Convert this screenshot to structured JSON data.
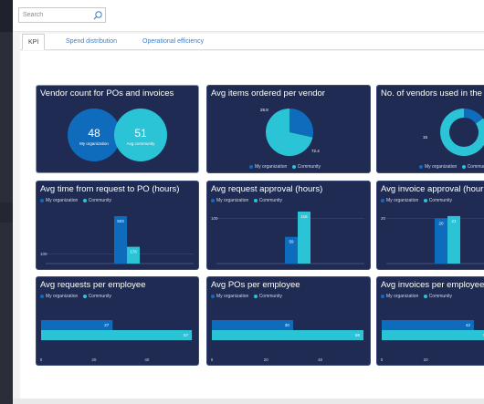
{
  "search": {
    "placeholder": "Search",
    "value": ""
  },
  "tabs": [
    {
      "label": "KPI",
      "active": true
    },
    {
      "label": "Spend distribution",
      "active": false
    },
    {
      "label": "Operational efficiency",
      "active": false
    }
  ],
  "colors": {
    "org": "#0f6cbd",
    "community": "#2bc3d6",
    "tile_bg": "#1f2b52"
  },
  "legend": {
    "org": "My organization",
    "community": "Community"
  },
  "tiles": {
    "vendor_count": {
      "title": "Vendor count for POs and invoices",
      "org_value": "48",
      "org_label": "My organization",
      "community_value": "51",
      "community_label": "Avg community"
    },
    "avg_items": {
      "title": "Avg items ordered per vendor",
      "label_a": "28.8",
      "label_b": "72.4"
    },
    "num_vendors": {
      "title": "No. of vendors used in the",
      "label_a": "15"
    },
    "time_to_po": {
      "title": "Avg time from request to PO (hours)"
    },
    "req_approval": {
      "title": "Avg request approval (hours)"
    },
    "inv_approval": {
      "title": "Avg invoice approval (hour"
    },
    "req_per_emp": {
      "title": "Avg requests per employee"
    },
    "pos_per_emp": {
      "title": "Avg POs per employee"
    },
    "inv_per_emp": {
      "title": "Avg invoices per employee"
    }
  },
  "chart_data": [
    {
      "type": "pie",
      "title": "Avg items ordered per vendor",
      "labels": [
        "My organization",
        "Community"
      ],
      "values": [
        28.8,
        72.4
      ]
    },
    {
      "type": "pie",
      "title": "No. of vendors used in the",
      "labels": [
        "My organization",
        "Community"
      ],
      "values": [
        15,
        85
      ]
    },
    {
      "type": "bar",
      "title": "Avg time from request to PO (hours)",
      "ylim": [
        0,
        600
      ],
      "ytick": "100",
      "ytick_value": 100,
      "series": [
        {
          "name": "My organization",
          "values": [
            503
          ],
          "label": "503"
        },
        {
          "name": "Community",
          "values": [
            178
          ],
          "label": "178"
        }
      ]
    },
    {
      "type": "bar",
      "title": "Avg request approval (hours)",
      "ylim": [
        0,
        125
      ],
      "ytick": "100",
      "ytick_value": 100,
      "series": [
        {
          "name": "My organization",
          "values": [
            59
          ],
          "label": "59"
        },
        {
          "name": "Community",
          "values": [
            115
          ],
          "label": "115"
        }
      ]
    },
    {
      "type": "bar",
      "title": "Avg invoice approval (hour",
      "ylim": [
        0,
        25
      ],
      "ytick": "20",
      "ytick_value": 20,
      "series": [
        {
          "name": "My organization",
          "values": [
            20
          ],
          "label": "20"
        },
        {
          "name": "Community",
          "values": [
            21
          ],
          "label": "21"
        }
      ]
    },
    {
      "type": "bar",
      "orientation": "horizontal",
      "title": "Avg requests per employee",
      "xlim": [
        0,
        58
      ],
      "xticks": [
        "0",
        "20",
        "40"
      ],
      "xtick_values": [
        0,
        20,
        40
      ],
      "series": [
        {
          "name": "My organization",
          "values": [
            27
          ],
          "label": "27"
        },
        {
          "name": "Community",
          "values": [
            57
          ],
          "label": "57"
        }
      ]
    },
    {
      "type": "bar",
      "orientation": "horizontal",
      "title": "Avg POs per employee",
      "xlim": [
        0,
        57
      ],
      "xticks": [
        "0",
        "20",
        "40"
      ],
      "xtick_values": [
        0,
        20,
        40
      ],
      "series": [
        {
          "name": "My organization",
          "values": [
            30
          ],
          "label": "30"
        },
        {
          "name": "Community",
          "values": [
            56
          ],
          "label": "56"
        }
      ]
    },
    {
      "type": "bar",
      "orientation": "horizontal",
      "title": "Avg invoices per employee",
      "xlim": [
        0,
        52
      ],
      "xticks": [
        "0",
        "20"
      ],
      "xtick_values": [
        0,
        20
      ],
      "series": [
        {
          "name": "My organization",
          "values": [
            42
          ],
          "label": "42"
        },
        {
          "name": "Community",
          "values": [
            50
          ],
          "label": "50"
        }
      ]
    }
  ]
}
